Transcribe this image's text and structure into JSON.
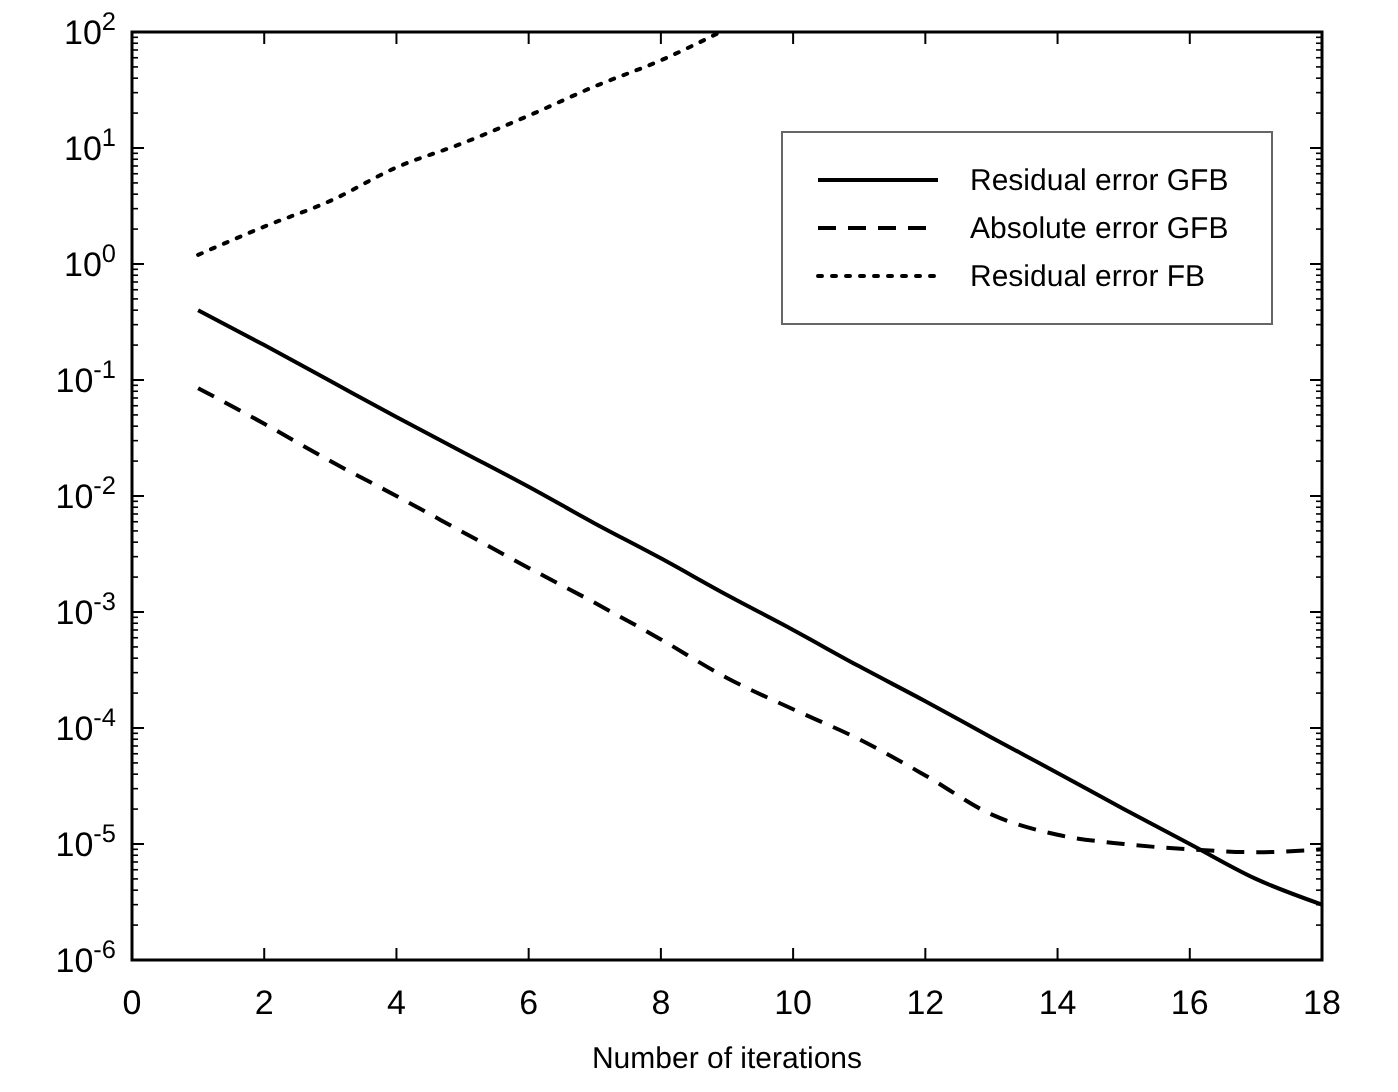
{
  "chart_data": {
    "type": "line",
    "xlabel": "Number of iterations",
    "log": "y",
    "xlim": [
      0,
      18
    ],
    "ylim": [
      1e-06,
      100
    ],
    "xticks": [
      0,
      2,
      4,
      6,
      8,
      10,
      12,
      14,
      16,
      18
    ],
    "yticks": [
      {
        "value": 1e-06,
        "label": "10$^{-6}$"
      },
      {
        "value": 1e-05,
        "label": "10$^{-5}$"
      },
      {
        "value": 0.0001,
        "label": "10$^{-4}$"
      },
      {
        "value": 0.001,
        "label": "10$^{-3}$"
      },
      {
        "value": 0.01,
        "label": "10$^{-2}$"
      },
      {
        "value": 0.1,
        "label": "10$^{-1}$"
      },
      {
        "value": 1,
        "label": "10$^{0}$"
      },
      {
        "value": 10,
        "label": "10$^{1}$"
      },
      {
        "value": 100,
        "label": "10$^{2}$"
      }
    ],
    "grid": false,
    "legend": "top right",
    "series": [
      {
        "name": "Residual error GFB",
        "color": "#000000",
        "line_style": "solid",
        "x": [
          1,
          2,
          3,
          4,
          5,
          6,
          7,
          8,
          9,
          10,
          11,
          12,
          13,
          14,
          15,
          16,
          17,
          18
        ],
        "values": [
          0.4,
          0.2,
          0.098,
          0.048,
          0.024,
          0.012,
          0.0058,
          0.0029,
          0.0014,
          0.0007,
          0.00034,
          0.00017,
          8.3e-05,
          4.1e-05,
          2e-05,
          1e-05,
          5e-06,
          3e-06
        ]
      },
      {
        "name": "Absolute error GFB",
        "color": "#000000",
        "line_style": "dashed",
        "x": [
          1,
          2,
          3,
          4,
          5,
          6,
          7,
          8,
          9,
          10,
          11,
          12,
          13,
          14,
          15,
          16,
          17,
          18
        ],
        "values": [
          0.085,
          0.042,
          0.02,
          0.01,
          0.0049,
          0.0024,
          0.0012,
          0.00058,
          0.00027,
          0.000145,
          8e-05,
          3.9e-05,
          1.8e-05,
          1.2e-05,
          1e-05,
          9e-06,
          8.5e-06,
          9e-06
        ]
      },
      {
        "name": "Residual error FB",
        "color": "#000000",
        "line_style": "dotted",
        "x": [
          1,
          2,
          3,
          4,
          5,
          6,
          7,
          8,
          8.9
        ],
        "values": [
          1.2,
          2.1,
          3.5,
          6.8,
          11,
          19,
          34,
          57,
          100
        ]
      }
    ]
  }
}
